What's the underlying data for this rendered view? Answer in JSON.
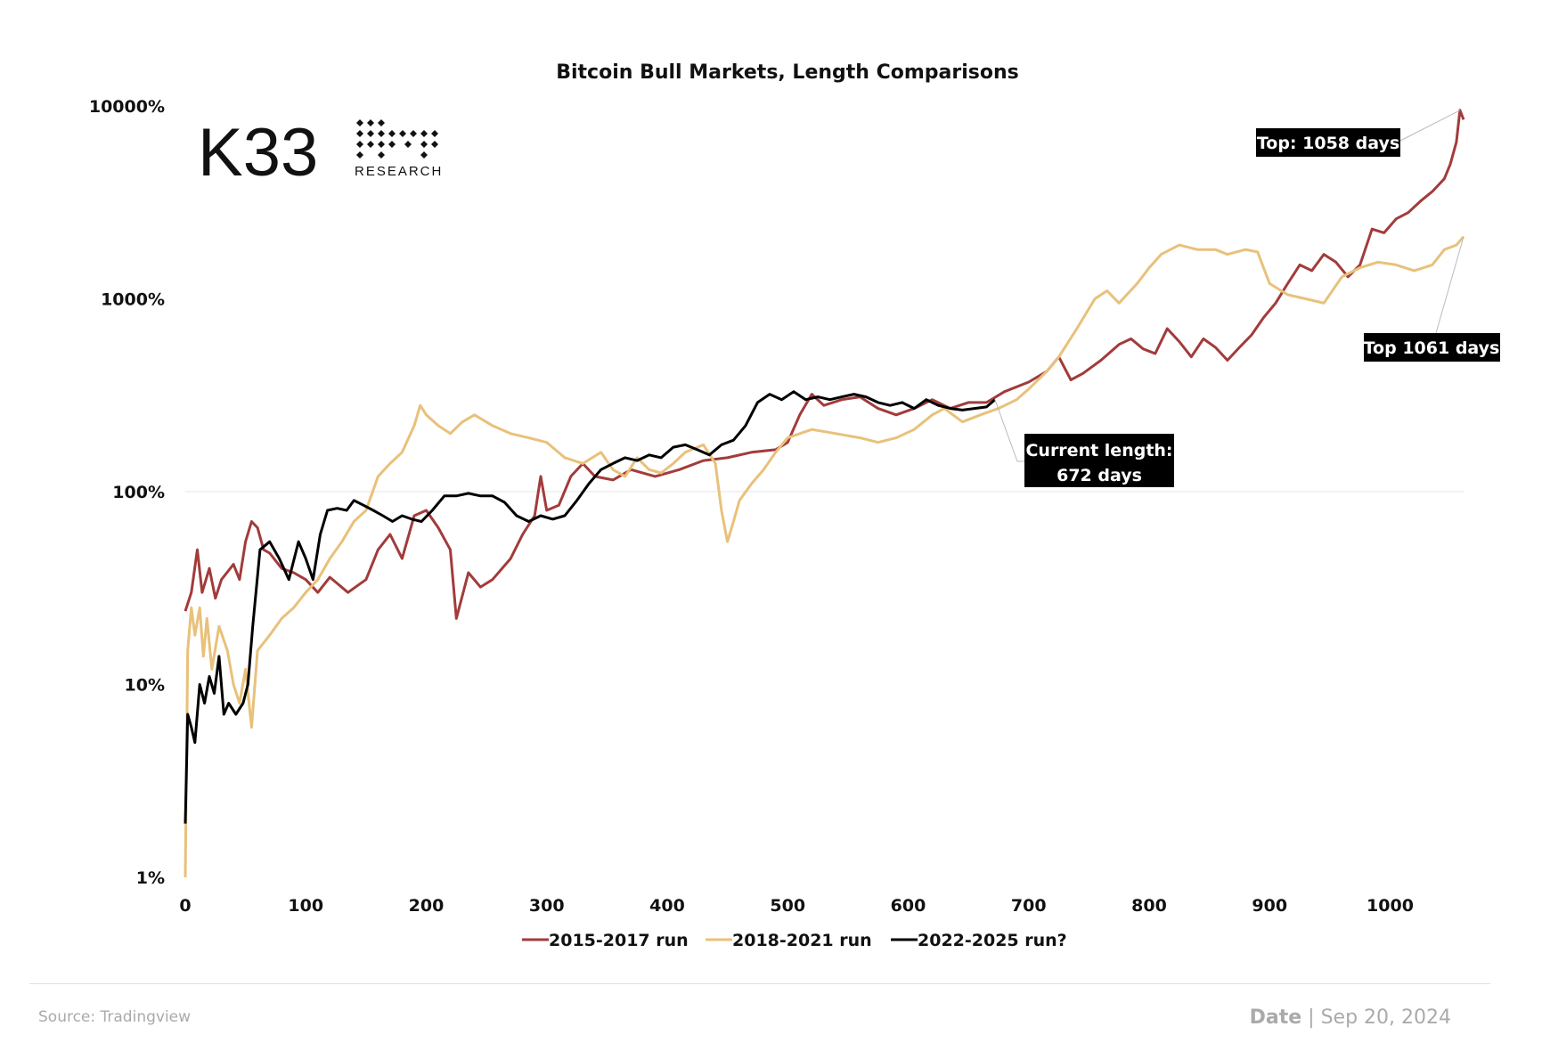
{
  "chart_data": {
    "type": "line",
    "title": "Bitcoin Bull Markets, Length Comparisons",
    "xlabel": "",
    "ylabel": "",
    "y_scale": "log",
    "ylim": [
      1,
      10000
    ],
    "xlim": [
      0,
      1061
    ],
    "x_ticks": [
      0,
      100,
      200,
      300,
      400,
      500,
      600,
      700,
      800,
      900,
      1000
    ],
    "x_tick_labels": [
      "0",
      "100",
      "200",
      "300",
      "400",
      "500",
      "600",
      "700",
      "800",
      "900",
      "1000"
    ],
    "y_ticks": [
      1,
      10,
      100,
      1000,
      10000
    ],
    "y_tick_labels": [
      "1%",
      "10%",
      "100%",
      "1000%",
      "10000%"
    ],
    "grid": "horizontal line at 100%",
    "legend_position": "bottom-center",
    "series": [
      {
        "name": "2015-2017 run",
        "color": "#a23b3b",
        "points": [
          [
            0,
            24
          ],
          [
            5,
            30
          ],
          [
            10,
            50
          ],
          [
            14,
            30
          ],
          [
            20,
            40
          ],
          [
            25,
            28
          ],
          [
            30,
            35
          ],
          [
            40,
            42
          ],
          [
            45,
            35
          ],
          [
            50,
            55
          ],
          [
            55,
            70
          ],
          [
            60,
            65
          ],
          [
            65,
            50
          ],
          [
            70,
            48
          ],
          [
            80,
            40
          ],
          [
            90,
            38
          ],
          [
            100,
            35
          ],
          [
            110,
            30
          ],
          [
            120,
            36
          ],
          [
            135,
            30
          ],
          [
            150,
            35
          ],
          [
            160,
            50
          ],
          [
            170,
            60
          ],
          [
            180,
            45
          ],
          [
            190,
            75
          ],
          [
            200,
            80
          ],
          [
            210,
            65
          ],
          [
            220,
            50
          ],
          [
            225,
            22
          ],
          [
            235,
            38
          ],
          [
            245,
            32
          ],
          [
            255,
            35
          ],
          [
            270,
            45
          ],
          [
            280,
            60
          ],
          [
            290,
            75
          ],
          [
            295,
            120
          ],
          [
            300,
            80
          ],
          [
            310,
            85
          ],
          [
            320,
            120
          ],
          [
            330,
            140
          ],
          [
            340,
            120
          ],
          [
            355,
            115
          ],
          [
            370,
            130
          ],
          [
            390,
            120
          ],
          [
            410,
            130
          ],
          [
            430,
            145
          ],
          [
            450,
            150
          ],
          [
            470,
            160
          ],
          [
            490,
            165
          ],
          [
            500,
            180
          ],
          [
            510,
            250
          ],
          [
            520,
            320
          ],
          [
            530,
            280
          ],
          [
            545,
            300
          ],
          [
            560,
            310
          ],
          [
            575,
            270
          ],
          [
            590,
            250
          ],
          [
            605,
            270
          ],
          [
            620,
            300
          ],
          [
            635,
            270
          ],
          [
            650,
            290
          ],
          [
            665,
            290
          ],
          [
            680,
            330
          ],
          [
            700,
            370
          ],
          [
            715,
            420
          ],
          [
            725,
            500
          ],
          [
            735,
            380
          ],
          [
            745,
            410
          ],
          [
            760,
            480
          ],
          [
            775,
            580
          ],
          [
            785,
            620
          ],
          [
            795,
            550
          ],
          [
            805,
            520
          ],
          [
            815,
            700
          ],
          [
            825,
            600
          ],
          [
            835,
            500
          ],
          [
            845,
            620
          ],
          [
            855,
            560
          ],
          [
            865,
            480
          ],
          [
            875,
            560
          ],
          [
            885,
            650
          ],
          [
            895,
            800
          ],
          [
            905,
            950
          ],
          [
            915,
            1200
          ],
          [
            925,
            1500
          ],
          [
            935,
            1400
          ],
          [
            945,
            1700
          ],
          [
            955,
            1550
          ],
          [
            965,
            1300
          ],
          [
            975,
            1500
          ],
          [
            985,
            2300
          ],
          [
            995,
            2200
          ],
          [
            1005,
            2600
          ],
          [
            1015,
            2800
          ],
          [
            1025,
            3200
          ],
          [
            1035,
            3600
          ],
          [
            1045,
            4200
          ],
          [
            1050,
            5000
          ],
          [
            1055,
            6500
          ],
          [
            1058,
            9500
          ],
          [
            1061,
            8500
          ]
        ]
      },
      {
        "name": "2018-2021 run",
        "color": "#e8c17a",
        "points": [
          [
            0,
            1
          ],
          [
            2,
            15
          ],
          [
            5,
            25
          ],
          [
            8,
            18
          ],
          [
            12,
            25
          ],
          [
            15,
            14
          ],
          [
            18,
            22
          ],
          [
            22,
            12
          ],
          [
            28,
            20
          ],
          [
            35,
            15
          ],
          [
            40,
            10
          ],
          [
            45,
            8
          ],
          [
            50,
            12
          ],
          [
            55,
            6
          ],
          [
            60,
            15
          ],
          [
            70,
            18
          ],
          [
            80,
            22
          ],
          [
            90,
            25
          ],
          [
            100,
            30
          ],
          [
            110,
            35
          ],
          [
            120,
            45
          ],
          [
            130,
            55
          ],
          [
            140,
            70
          ],
          [
            150,
            80
          ],
          [
            160,
            120
          ],
          [
            170,
            140
          ],
          [
            180,
            160
          ],
          [
            190,
            220
          ],
          [
            195,
            280
          ],
          [
            200,
            250
          ],
          [
            210,
            220
          ],
          [
            220,
            200
          ],
          [
            230,
            230
          ],
          [
            240,
            250
          ],
          [
            255,
            220
          ],
          [
            270,
            200
          ],
          [
            285,
            190
          ],
          [
            300,
            180
          ],
          [
            315,
            150
          ],
          [
            330,
            140
          ],
          [
            345,
            160
          ],
          [
            355,
            130
          ],
          [
            365,
            120
          ],
          [
            375,
            150
          ],
          [
            385,
            130
          ],
          [
            395,
            125
          ],
          [
            405,
            140
          ],
          [
            415,
            160
          ],
          [
            430,
            175
          ],
          [
            440,
            140
          ],
          [
            445,
            80
          ],
          [
            450,
            55
          ],
          [
            455,
            70
          ],
          [
            460,
            90
          ],
          [
            470,
            110
          ],
          [
            480,
            130
          ],
          [
            490,
            160
          ],
          [
            500,
            190
          ],
          [
            510,
            200
          ],
          [
            520,
            210
          ],
          [
            540,
            200
          ],
          [
            560,
            190
          ],
          [
            575,
            180
          ],
          [
            590,
            190
          ],
          [
            605,
            210
          ],
          [
            620,
            250
          ],
          [
            630,
            270
          ],
          [
            645,
            230
          ],
          [
            660,
            250
          ],
          [
            675,
            270
          ],
          [
            690,
            300
          ],
          [
            700,
            340
          ],
          [
            715,
            420
          ],
          [
            725,
            500
          ],
          [
            740,
            700
          ],
          [
            755,
            1000
          ],
          [
            765,
            1100
          ],
          [
            775,
            950
          ],
          [
            790,
            1200
          ],
          [
            800,
            1450
          ],
          [
            810,
            1700
          ],
          [
            825,
            1900
          ],
          [
            840,
            1800
          ],
          [
            855,
            1800
          ],
          [
            865,
            1700
          ],
          [
            880,
            1800
          ],
          [
            890,
            1750
          ],
          [
            900,
            1200
          ],
          [
            915,
            1050
          ],
          [
            930,
            1000
          ],
          [
            945,
            950
          ],
          [
            960,
            1300
          ],
          [
            975,
            1450
          ],
          [
            990,
            1550
          ],
          [
            1005,
            1500
          ],
          [
            1020,
            1400
          ],
          [
            1035,
            1500
          ],
          [
            1045,
            1800
          ],
          [
            1055,
            1900
          ],
          [
            1061,
            2100
          ]
        ]
      },
      {
        "name": "2022-2025 run?",
        "color": "#000000",
        "points": [
          [
            0,
            1.9
          ],
          [
            2,
            7
          ],
          [
            5,
            6
          ],
          [
            8,
            5
          ],
          [
            12,
            10
          ],
          [
            16,
            8
          ],
          [
            20,
            11
          ],
          [
            24,
            9
          ],
          [
            28,
            14
          ],
          [
            32,
            7
          ],
          [
            36,
            8
          ],
          [
            42,
            7
          ],
          [
            48,
            8
          ],
          [
            52,
            10
          ],
          [
            56,
            20
          ],
          [
            62,
            50
          ],
          [
            70,
            55
          ],
          [
            78,
            45
          ],
          [
            86,
            35
          ],
          [
            94,
            55
          ],
          [
            100,
            45
          ],
          [
            106,
            35
          ],
          [
            112,
            60
          ],
          [
            118,
            80
          ],
          [
            126,
            82
          ],
          [
            134,
            80
          ],
          [
            140,
            90
          ],
          [
            148,
            85
          ],
          [
            156,
            80
          ],
          [
            164,
            75
          ],
          [
            172,
            70
          ],
          [
            180,
            75
          ],
          [
            188,
            72
          ],
          [
            196,
            70
          ],
          [
            205,
            80
          ],
          [
            215,
            95
          ],
          [
            225,
            95
          ],
          [
            235,
            98
          ],
          [
            245,
            95
          ],
          [
            255,
            95
          ],
          [
            265,
            88
          ],
          [
            275,
            75
          ],
          [
            285,
            70
          ],
          [
            295,
            75
          ],
          [
            305,
            72
          ],
          [
            315,
            75
          ],
          [
            325,
            90
          ],
          [
            335,
            110
          ],
          [
            345,
            130
          ],
          [
            355,
            140
          ],
          [
            365,
            150
          ],
          [
            375,
            145
          ],
          [
            385,
            155
          ],
          [
            395,
            150
          ],
          [
            405,
            170
          ],
          [
            415,
            175
          ],
          [
            425,
            165
          ],
          [
            435,
            155
          ],
          [
            445,
            175
          ],
          [
            455,
            185
          ],
          [
            465,
            220
          ],
          [
            475,
            290
          ],
          [
            485,
            320
          ],
          [
            495,
            300
          ],
          [
            505,
            330
          ],
          [
            515,
            300
          ],
          [
            525,
            310
          ],
          [
            535,
            300
          ],
          [
            545,
            310
          ],
          [
            555,
            320
          ],
          [
            565,
            310
          ],
          [
            575,
            290
          ],
          [
            585,
            280
          ],
          [
            595,
            290
          ],
          [
            605,
            270
          ],
          [
            615,
            300
          ],
          [
            625,
            280
          ],
          [
            635,
            270
          ],
          [
            645,
            265
          ],
          [
            655,
            270
          ],
          [
            665,
            275
          ],
          [
            672,
            300
          ]
        ]
      }
    ],
    "annotations": [
      {
        "text": "Top: 1058 days",
        "x": 1058,
        "y": 9500
      },
      {
        "text": "Top 1061 days",
        "x": 1061,
        "y": 2100
      },
      {
        "lines": [
          "Current length:",
          "672 days"
        ],
        "x": 672,
        "y": 300
      }
    ]
  },
  "logo": {
    "main": "K33",
    "sub": "RESEARCH"
  },
  "footer": {
    "source": "Source:  Tradingview",
    "date_label": "Date",
    "date_sep": " | ",
    "date_value": "Sep 20, 2024"
  }
}
